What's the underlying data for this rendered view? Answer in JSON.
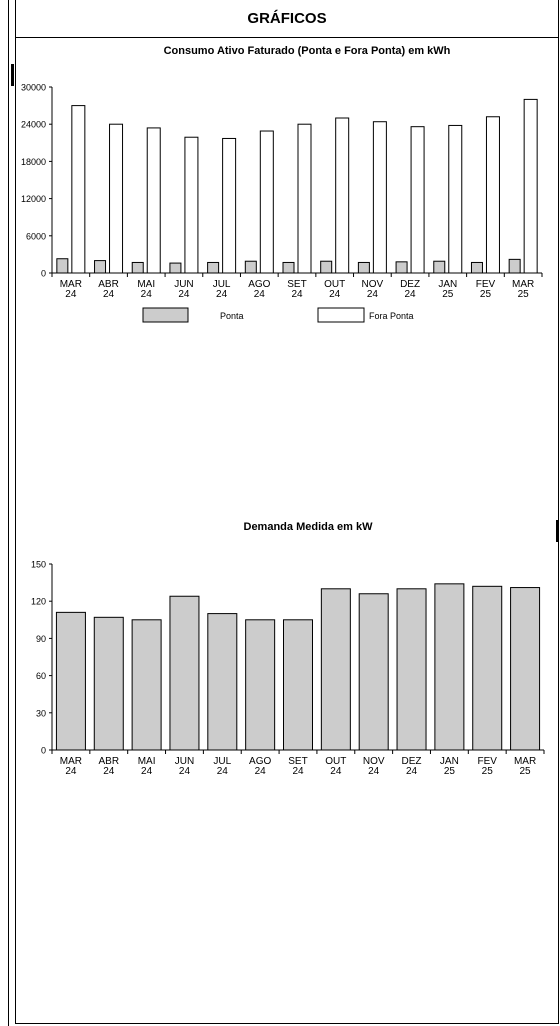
{
  "header": {
    "title": "GRÁFICOS"
  },
  "chart_data": [
    {
      "type": "bar",
      "title": "Consumo Ativo Faturado (Ponta e Fora Ponta) em kWh",
      "categories": [
        "MAR 24",
        "ABR 24",
        "MAI 24",
        "JUN 24",
        "JUL 24",
        "AGO 24",
        "SET 24",
        "OUT 24",
        "NOV 24",
        "DEZ 24",
        "JAN 25",
        "FEV 25",
        "MAR 25"
      ],
      "series": [
        {
          "name": "Ponta",
          "color": "#cccccc",
          "values": [
            2300,
            2000,
            1700,
            1600,
            1700,
            1900,
            1700,
            1900,
            1700,
            1800,
            1900,
            1700,
            2200
          ]
        },
        {
          "name": "Fora Ponta",
          "color": "#ffffff",
          "values": [
            27000,
            24000,
            23400,
            21900,
            21700,
            22900,
            24000,
            25000,
            24400,
            23600,
            23800,
            25200,
            28000
          ]
        }
      ],
      "yticks": [
        "30000",
        "24000",
        "18000",
        "12000",
        "6000",
        "0"
      ],
      "ylim": [
        0,
        30000
      ],
      "legend": "bottom"
    },
    {
      "type": "bar",
      "title": "Demanda Medida em kW",
      "categories": [
        "MAR 24",
        "ABR 24",
        "MAI 24",
        "JUN 24",
        "JUL 24",
        "AGO 24",
        "SET 24",
        "OUT 24",
        "NOV 24",
        "DEZ 24",
        "JAN 25",
        "FEV 25",
        "MAR 25"
      ],
      "series": [
        {
          "color": "#cccccc",
          "values": [
            111,
            107,
            105,
            124,
            110,
            105,
            105,
            130,
            126,
            130,
            134,
            132,
            131
          ]
        }
      ],
      "yticks": [
        "150",
        "120",
        "90",
        "60",
        "30",
        "0"
      ],
      "ylim": [
        0,
        150
      ]
    }
  ]
}
